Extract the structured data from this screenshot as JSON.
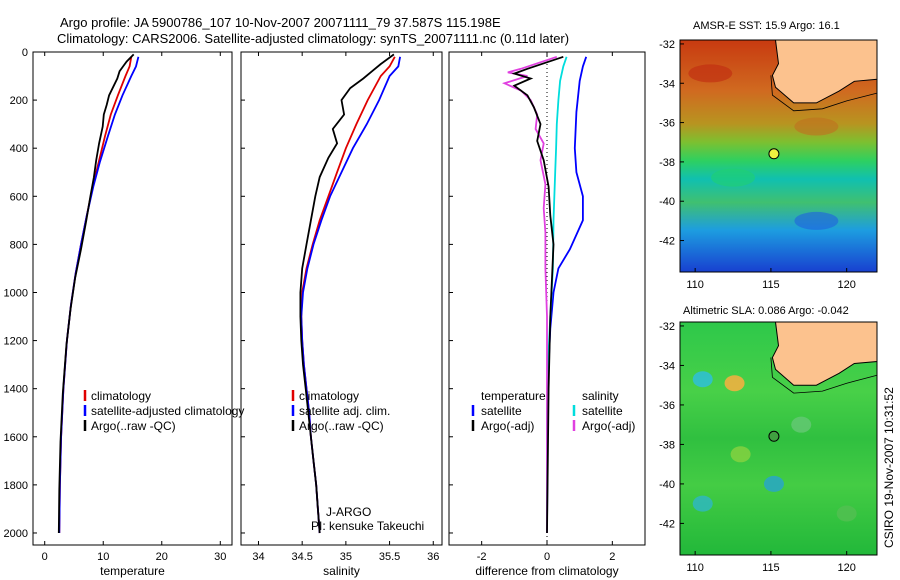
{
  "title_line1": "Argo profile: JA 5900786_107 10-Nov-2007 20071111_79 37.587S 115.198E",
  "title_line2": "Climatology: CARS2006. Satellite-adjusted climatology: synTS_20071111.nc (0.11d later)",
  "colors": {
    "climatology": "#e00000",
    "satellite": "#0000ff",
    "argo": "#000000",
    "sal_satellite": "#00dddd",
    "sal_argo": "#e040e0"
  },
  "chart_data": [
    {
      "type": "line",
      "id": "temperature",
      "xlabel": "temperature",
      "ylabel": "",
      "xlim": [
        -2,
        32
      ],
      "ylim": [
        2050,
        0
      ],
      "xticks": [
        0,
        10,
        20,
        30
      ],
      "yticks": [
        0,
        200,
        400,
        600,
        800,
        1000,
        1200,
        1400,
        1600,
        1800,
        2000
      ],
      "legend": [
        "climatology",
        "satellite-adjusted climatology",
        "Argo(..raw -QC)"
      ],
      "series": [
        {
          "name": "climatology",
          "color": "#e00000",
          "points": [
            [
              14.8,
              20
            ],
            [
              14.5,
              60
            ],
            [
              13.8,
              100
            ],
            [
              12.5,
              180
            ],
            [
              11.3,
              260
            ],
            [
              10.3,
              350
            ],
            [
              9.2,
              460
            ],
            [
              8.2,
              560
            ],
            [
              7.2,
              680
            ],
            [
              6.2,
              800
            ],
            [
              5.3,
              920
            ],
            [
              4.5,
              1050
            ],
            [
              3.8,
              1200
            ],
            [
              3.2,
              1400
            ],
            [
              2.8,
              1600
            ],
            [
              2.6,
              1800
            ],
            [
              2.5,
              2000
            ]
          ]
        },
        {
          "name": "satellite-adjusted climatology",
          "color": "#0000ff",
          "points": [
            [
              16.0,
              20
            ],
            [
              15.6,
              60
            ],
            [
              14.8,
              100
            ],
            [
              13.3,
              180
            ],
            [
              12.0,
              260
            ],
            [
              10.8,
              350
            ],
            [
              9.4,
              460
            ],
            [
              8.3,
              560
            ],
            [
              7.2,
              680
            ],
            [
              6.2,
              800
            ],
            [
              5.3,
              920
            ],
            [
              4.5,
              1050
            ],
            [
              3.8,
              1200
            ],
            [
              3.2,
              1400
            ],
            [
              2.8,
              1600
            ],
            [
              2.6,
              1800
            ],
            [
              2.5,
              2000
            ]
          ]
        },
        {
          "name": "Argo(..raw -QC)",
          "color": "#000000",
          "points": [
            [
              15.2,
              10
            ],
            [
              14.0,
              40
            ],
            [
              13.4,
              60
            ],
            [
              12.8,
              80
            ],
            [
              12.4,
              110
            ],
            [
              11.8,
              140
            ],
            [
              11.0,
              180
            ],
            [
              10.6,
              220
            ],
            [
              10.1,
              260
            ],
            [
              9.9,
              310
            ],
            [
              9.3,
              380
            ],
            [
              8.8,
              450
            ],
            [
              8.4,
              520
            ],
            [
              7.8,
              600
            ],
            [
              7.1,
              700
            ],
            [
              6.2,
              820
            ],
            [
              5.2,
              940
            ],
            [
              4.4,
              1070
            ],
            [
              3.7,
              1220
            ],
            [
              3.1,
              1420
            ],
            [
              2.7,
              1620
            ],
            [
              2.5,
              1820
            ],
            [
              2.4,
              2000
            ]
          ]
        }
      ]
    },
    {
      "type": "line",
      "id": "salinity",
      "xlabel": "salinity",
      "ylabel": "",
      "xlim": [
        33.8,
        36.1
      ],
      "ylim": [
        2050,
        0
      ],
      "xticks": [
        34,
        34.5,
        35,
        35.5,
        36
      ],
      "legend": [
        "climatology",
        "satellite adj. clim.",
        "Argo(..raw -QC)"
      ],
      "annotation": [
        "J-ARGO",
        "PI: kensuke Takeuchi"
      ],
      "series": [
        {
          "name": "climatology",
          "color": "#e00000",
          "points": [
            [
              35.56,
              20
            ],
            [
              35.5,
              60
            ],
            [
              35.4,
              100
            ],
            [
              35.25,
              200
            ],
            [
              35.12,
              300
            ],
            [
              35.0,
              400
            ],
            [
              34.9,
              500
            ],
            [
              34.8,
              600
            ],
            [
              34.7,
              700
            ],
            [
              34.62,
              800
            ],
            [
              34.55,
              900
            ],
            [
              34.5,
              1000
            ],
            [
              34.49,
              1100
            ],
            [
              34.5,
              1200
            ],
            [
              34.52,
              1300
            ],
            [
              34.55,
              1400
            ],
            [
              34.58,
              1500
            ],
            [
              34.6,
              1600
            ],
            [
              34.63,
              1700
            ],
            [
              34.66,
              1800
            ],
            [
              34.68,
              1900
            ],
            [
              34.7,
              2000
            ]
          ]
        },
        {
          "name": "satellite adj. clim.",
          "color": "#0000ff",
          "points": [
            [
              35.62,
              20
            ],
            [
              35.6,
              60
            ],
            [
              35.5,
              100
            ],
            [
              35.38,
              200
            ],
            [
              35.24,
              300
            ],
            [
              35.08,
              400
            ],
            [
              34.95,
              500
            ],
            [
              34.82,
              600
            ],
            [
              34.72,
              700
            ],
            [
              34.63,
              800
            ],
            [
              34.56,
              900
            ],
            [
              34.51,
              1000
            ],
            [
              34.49,
              1100
            ],
            [
              34.5,
              1200
            ],
            [
              34.52,
              1300
            ],
            [
              34.55,
              1400
            ],
            [
              34.58,
              1500
            ],
            [
              34.6,
              1600
            ],
            [
              34.63,
              1700
            ],
            [
              34.66,
              1800
            ],
            [
              34.68,
              1900
            ],
            [
              34.7,
              2000
            ]
          ]
        },
        {
          "name": "Argo(..raw -QC)",
          "color": "#000000",
          "points": [
            [
              35.55,
              10
            ],
            [
              35.4,
              50
            ],
            [
              35.3,
              80
            ],
            [
              35.2,
              110
            ],
            [
              35.05,
              150
            ],
            [
              34.95,
              200
            ],
            [
              34.98,
              260
            ],
            [
              34.85,
              320
            ],
            [
              34.9,
              380
            ],
            [
              34.8,
              440
            ],
            [
              34.7,
              520
            ],
            [
              34.65,
              600
            ],
            [
              34.6,
              700
            ],
            [
              34.55,
              800
            ],
            [
              34.5,
              900
            ],
            [
              34.48,
              1000
            ],
            [
              34.48,
              1100
            ],
            [
              34.49,
              1200
            ],
            [
              34.51,
              1300
            ],
            [
              34.54,
              1400
            ],
            [
              34.57,
              1500
            ],
            [
              34.6,
              1600
            ],
            [
              34.63,
              1700
            ],
            [
              34.66,
              1800
            ],
            [
              34.68,
              1900
            ],
            [
              34.7,
              2000
            ]
          ]
        }
      ]
    },
    {
      "type": "line",
      "id": "difference",
      "xlabel": "difference from climatology",
      "ylabel": "",
      "xlim": [
        -3,
        3
      ],
      "ylim": [
        2050,
        0
      ],
      "xticks": [
        -2,
        0,
        2
      ],
      "legend_left": [
        "temperature",
        "satellite",
        "Argo(-adj)"
      ],
      "legend_right": [
        "salinity",
        "satellite",
        "Argo(-adj)"
      ],
      "series": [
        {
          "name": "temperature satellite",
          "color": "#0000ff",
          "points": [
            [
              1.2,
              20
            ],
            [
              1.1,
              60
            ],
            [
              1.0,
              120
            ],
            [
              0.9,
              250
            ],
            [
              0.85,
              400
            ],
            [
              0.9,
              500
            ],
            [
              1.1,
              600
            ],
            [
              1.1,
              700
            ],
            [
              0.7,
              820
            ],
            [
              0.35,
              900
            ],
            [
              0.2,
              1000
            ],
            [
              0.1,
              1150
            ],
            [
              0.05,
              1300
            ],
            [
              0.02,
              1500
            ],
            [
              0.0,
              2000
            ]
          ]
        },
        {
          "name": "salinity satellite",
          "color": "#00dddd",
          "points": [
            [
              0.6,
              20
            ],
            [
              0.5,
              60
            ],
            [
              0.4,
              120
            ],
            [
              0.35,
              200
            ],
            [
              0.3,
              300
            ],
            [
              0.28,
              400
            ],
            [
              0.25,
              500
            ],
            [
              0.2,
              700
            ],
            [
              0.18,
              900
            ],
            [
              0.1,
              1100
            ],
            [
              0.03,
              1300
            ],
            [
              0.0,
              1500
            ],
            [
              0.0,
              2000
            ]
          ]
        },
        {
          "name": "salinity Argo(-adj)",
          "color": "#e040e0",
          "points": [
            [
              0.3,
              20
            ],
            [
              -0.8,
              70
            ],
            [
              -1.2,
              85
            ],
            [
              -0.6,
              100
            ],
            [
              -1.3,
              130
            ],
            [
              -0.8,
              160
            ],
            [
              -0.5,
              200
            ],
            [
              -0.3,
              260
            ],
            [
              -0.35,
              320
            ],
            [
              -0.1,
              380
            ],
            [
              -0.2,
              450
            ],
            [
              -0.05,
              550
            ],
            [
              -0.1,
              650
            ],
            [
              -0.05,
              750
            ],
            [
              -0.05,
              900
            ],
            [
              0.0,
              1100
            ],
            [
              0.0,
              2000
            ]
          ]
        },
        {
          "name": "temperature Argo(-adj)",
          "color": "#000000",
          "points": [
            [
              0.5,
              20
            ],
            [
              -0.6,
              70
            ],
            [
              -1.0,
              90
            ],
            [
              -0.5,
              110
            ],
            [
              -1.0,
              140
            ],
            [
              -0.6,
              180
            ],
            [
              -0.4,
              230
            ],
            [
              -0.2,
              300
            ],
            [
              -0.3,
              370
            ],
            [
              -0.1,
              450
            ],
            [
              0.05,
              560
            ],
            [
              0.1,
              680
            ],
            [
              0.2,
              800
            ],
            [
              0.15,
              950
            ],
            [
              0.1,
              1100
            ],
            [
              0.05,
              1400
            ],
            [
              0.0,
              2000
            ]
          ]
        }
      ]
    }
  ],
  "map_top": {
    "title": "AMSR-E SST: 15.9 Argo: 16.1",
    "xticks": [
      110,
      115,
      120
    ],
    "yticks": [
      -32,
      -34,
      -36,
      -38,
      -40,
      -42
    ]
  },
  "map_bottom": {
    "title": "Altimetric SLA: 0.086 Argo: -0.042",
    "xticks": [
      110,
      115,
      120
    ],
    "yticks": [
      -32,
      -34,
      -36,
      -38,
      -40,
      -42
    ]
  },
  "credit": "CSIRO 19-Nov-2007 10:31:52"
}
